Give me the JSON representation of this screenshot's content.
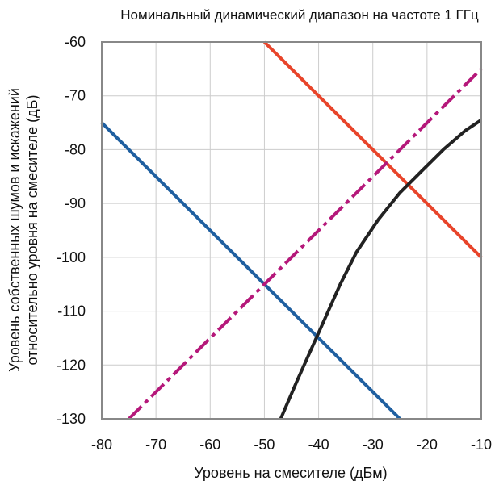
{
  "chart_data": {
    "type": "line",
    "title": "Номинальный динамический диапазон на частоте 1 ГГц",
    "xlabel": "Уровень на смесителе (дБм)",
    "ylabel": [
      "Уровень собственных шумов и искажений",
      "относительно уровня на смесителе (дБ)"
    ],
    "xlim": [
      -80,
      -10
    ],
    "ylim": [
      -130,
      -60
    ],
    "x_ticks": [
      -80,
      -70,
      -60,
      -50,
      -40,
      -30,
      -20,
      -10
    ],
    "y_ticks": [
      -60,
      -70,
      -80,
      -90,
      -100,
      -110,
      -120,
      -130
    ],
    "grid": true,
    "series": [
      {
        "color": "#1f5fa0",
        "style": "solid",
        "points": [
          [
            -80,
            -75
          ],
          [
            -25,
            -130
          ]
        ]
      },
      {
        "color": "#e8442a",
        "style": "solid",
        "points": [
          [
            -50,
            -60
          ],
          [
            -10,
            -100
          ]
        ]
      },
      {
        "color": "#b5187a",
        "style": "dashed",
        "points": [
          [
            -75,
            -130
          ],
          [
            -10,
            -65
          ]
        ]
      },
      {
        "color": "#222222",
        "style": "solid",
        "points": [
          [
            -47,
            -130
          ],
          [
            -44,
            -123
          ],
          [
            -40,
            -114
          ],
          [
            -36,
            -105
          ],
          [
            -33,
            -99
          ],
          [
            -29,
            -93
          ],
          [
            -25,
            -88
          ],
          [
            -21,
            -84
          ],
          [
            -17,
            -80
          ],
          [
            -13,
            -76.5
          ],
          [
            -10,
            -74.5
          ]
        ]
      }
    ]
  }
}
